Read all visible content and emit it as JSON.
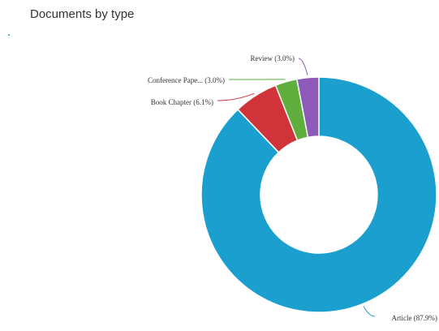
{
  "chart_data": {
    "type": "donut",
    "title": "Documents by type",
    "categories": [
      "Article",
      "Book Chapter",
      "Conference Pape...",
      "Review"
    ],
    "values": [
      87.9,
      6.1,
      3.0,
      3.0
    ],
    "value_labels": [
      "Article (87.9%)",
      "Book Chapter (6.1%)",
      "Conference Pape... (3.0%)",
      "Review (3.0%)"
    ],
    "colors": [
      "#1a9fcf",
      "#d0343a",
      "#5fae3e",
      "#8e5ab9"
    ]
  }
}
